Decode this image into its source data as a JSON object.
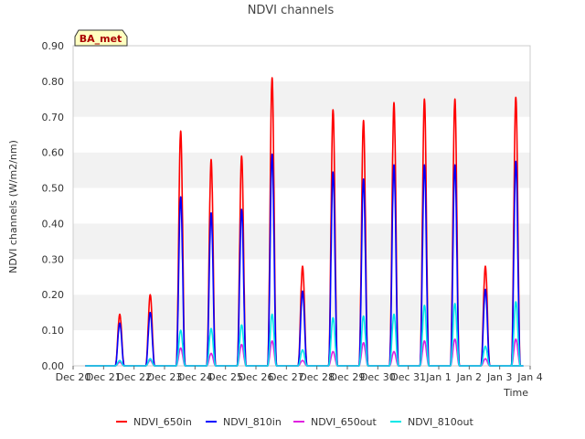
{
  "chart_data": {
    "type": "line",
    "title": "NDVI channels",
    "xlabel": "Time",
    "ylabel": "NDVI channels (W/m2/nm)",
    "ylim": [
      0,
      0.9
    ],
    "yticks": [
      "0.00",
      "0.10",
      "0.20",
      "0.30",
      "0.40",
      "0.50",
      "0.60",
      "0.70",
      "0.80",
      "0.90"
    ],
    "yticks_values": [
      0,
      0.1,
      0.2,
      0.3,
      0.4,
      0.5,
      0.6,
      0.7,
      0.8,
      0.9
    ],
    "xlim": [
      0,
      15
    ],
    "xticks": [
      "Dec 20",
      "Dec 21",
      "Dec 22",
      "Dec 23",
      "Dec 24",
      "Dec 25",
      "Dec 26",
      "Dec 27",
      "Dec 28",
      "Dec 29",
      "Dec 30",
      "Dec 31",
      "Jan 1",
      "Jan 2",
      "Jan 3",
      "Jan 4"
    ],
    "badge": "BA_met",
    "grid": "horizontal bands",
    "legend_position": "bottom",
    "series": [
      {
        "name": "NDVI_650in",
        "color": "#ff0000",
        "peaks": [
          0.145,
          0.2,
          0.66,
          0.58,
          0.59,
          0.81,
          0.28,
          0.72,
          0.69,
          0.74,
          0.75,
          0.75,
          0.28,
          0.755
        ]
      },
      {
        "name": "NDVI_810in",
        "color": "#0000ff",
        "peaks": [
          0.12,
          0.15,
          0.475,
          0.43,
          0.44,
          0.595,
          0.21,
          0.545,
          0.525,
          0.565,
          0.565,
          0.565,
          0.215,
          0.575
        ]
      },
      {
        "name": "NDVI_650out",
        "color": "#e020e0",
        "peaks": [
          0.01,
          0.015,
          0.05,
          0.035,
          0.06,
          0.07,
          0.015,
          0.04,
          0.065,
          0.04,
          0.07,
          0.075,
          0.02,
          0.075
        ]
      },
      {
        "name": "NDVI_810out",
        "color": "#00e8e8",
        "peaks": [
          0.015,
          0.02,
          0.1,
          0.105,
          0.115,
          0.145,
          0.045,
          0.135,
          0.14,
          0.145,
          0.17,
          0.175,
          0.055,
          0.18
        ]
      }
    ]
  }
}
